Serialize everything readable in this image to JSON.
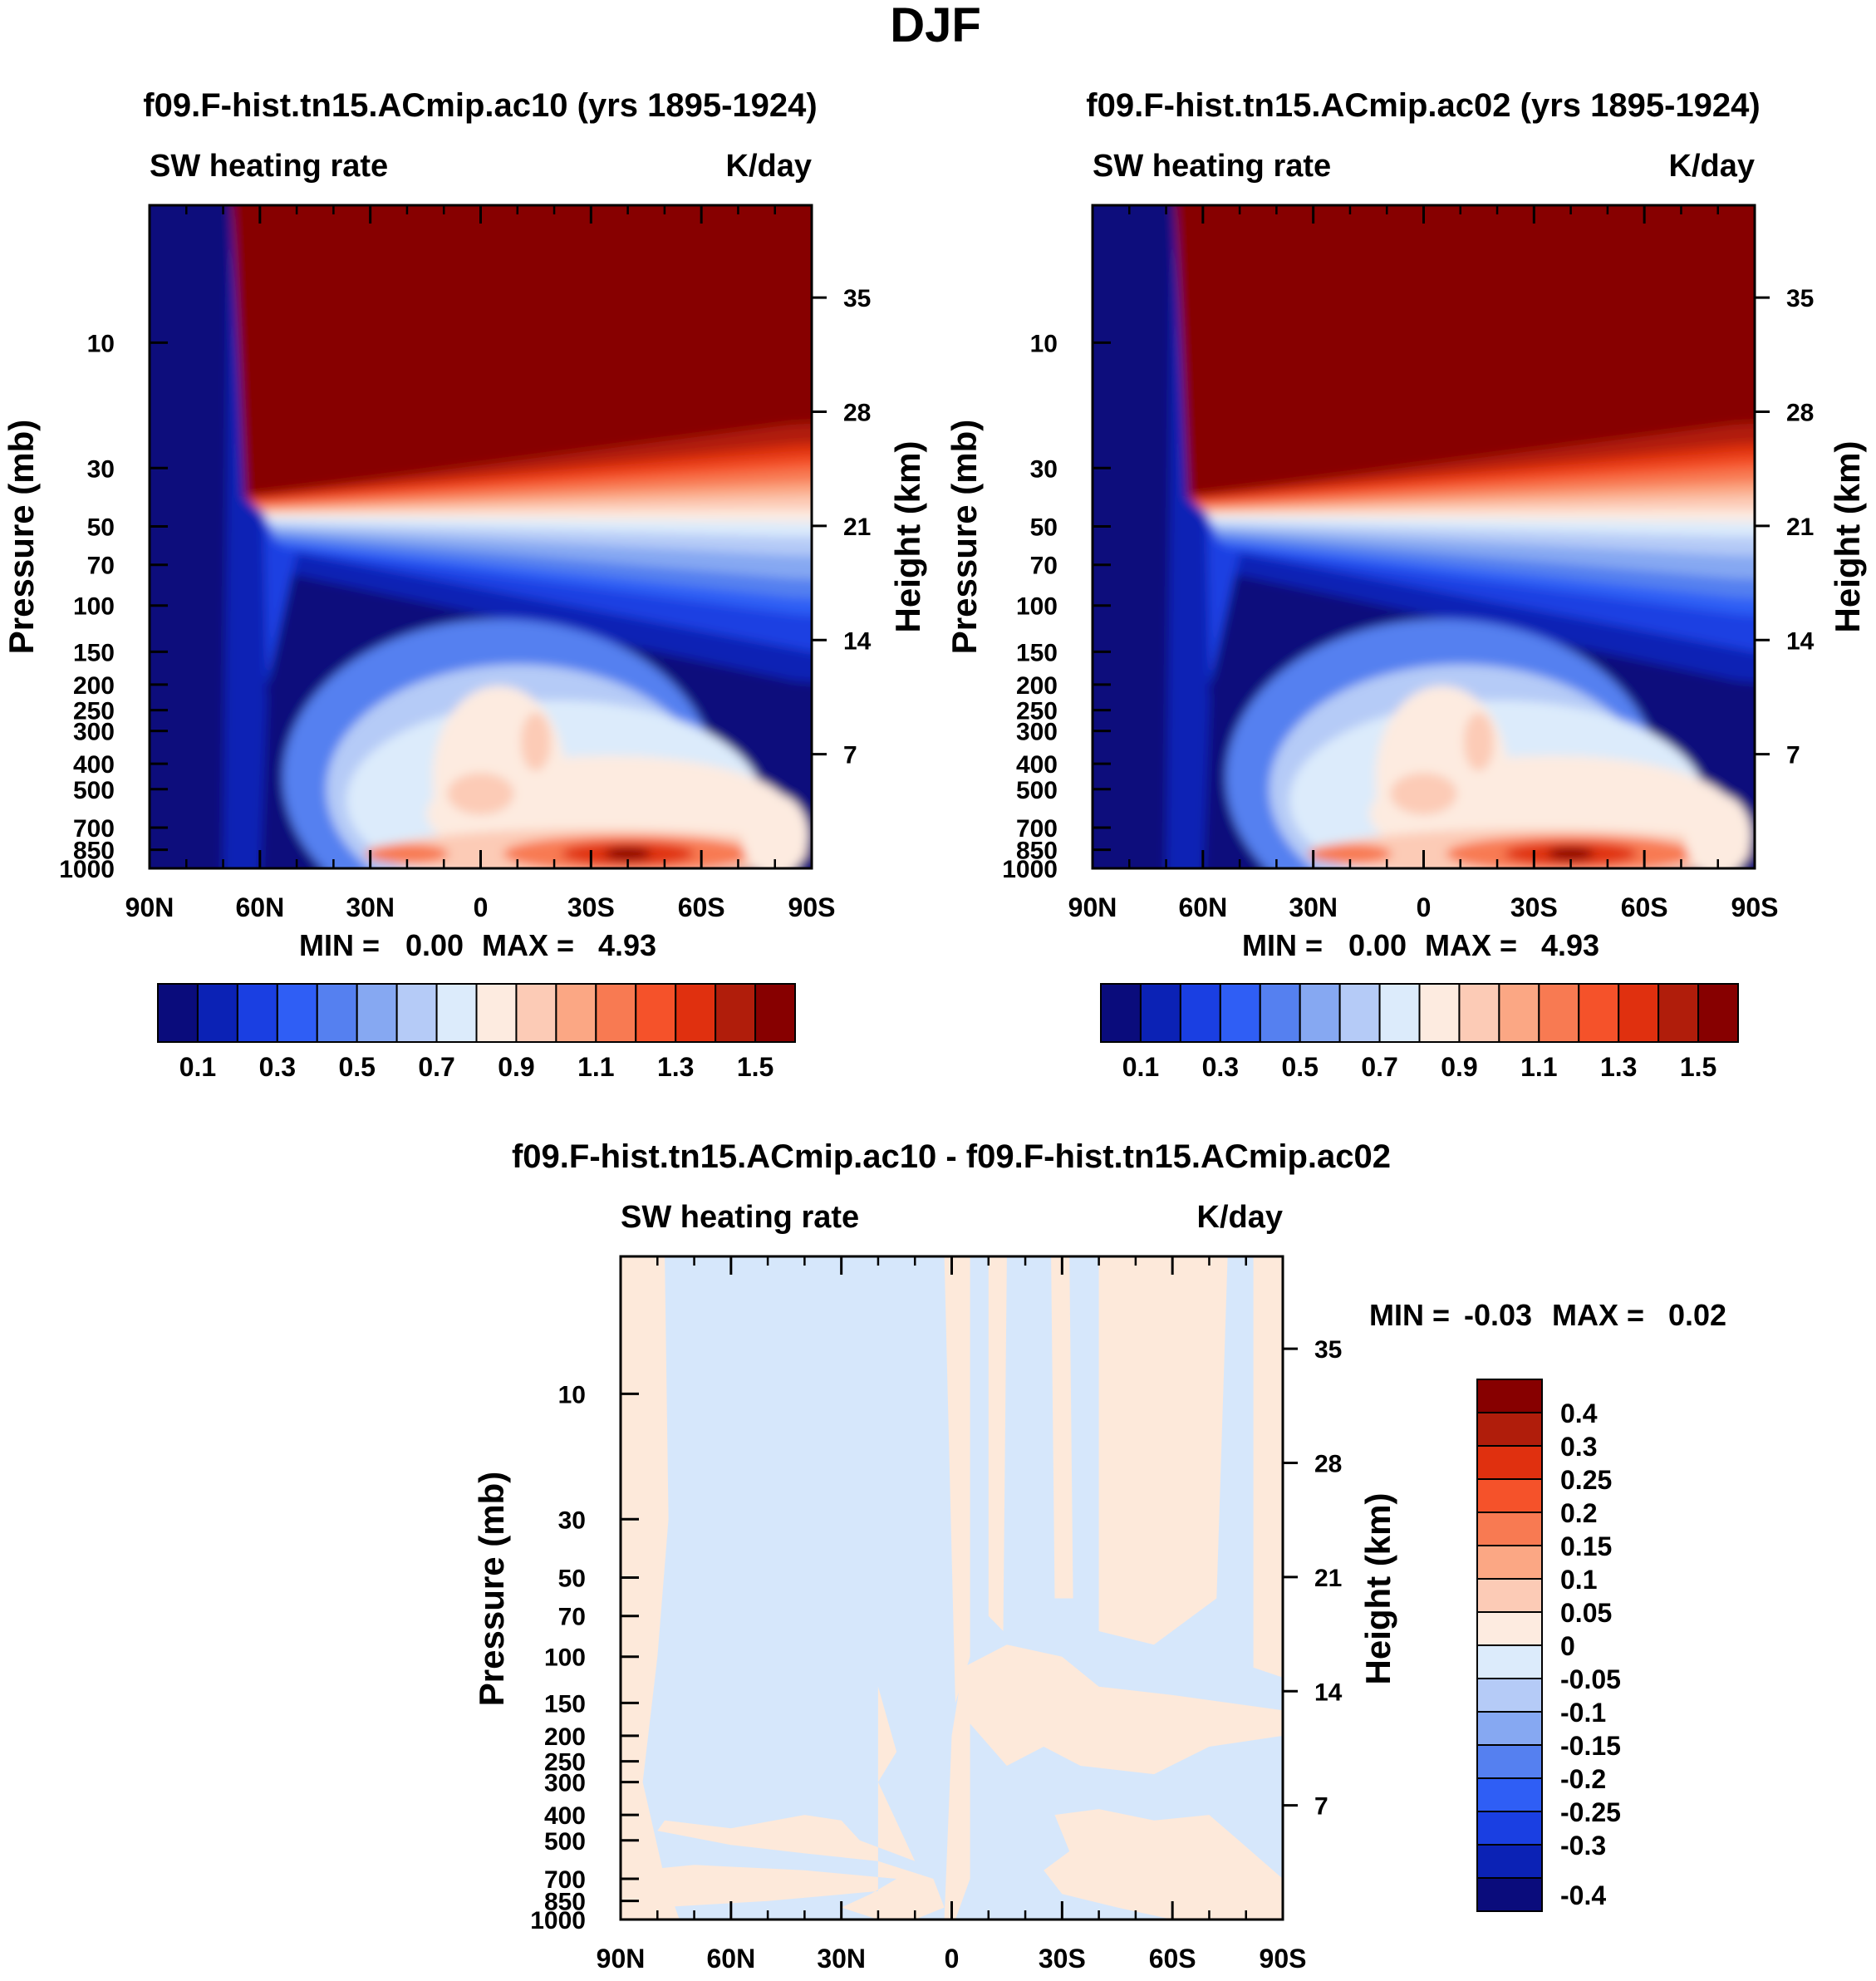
{
  "figure_title": "DJF",
  "colors": {
    "panel_scale": [
      "#0a0c7c",
      "#0b22b5",
      "#1a3fe2",
      "#2f5ef5",
      "#5580f0",
      "#86a8f2",
      "#b5cbf7",
      "#dcebfb",
      "#fdebe0",
      "#fccbb6",
      "#fba784",
      "#f87a52",
      "#f5522a",
      "#e0300f",
      "#b01d0b",
      "#870000"
    ],
    "diff_scale": [
      "#870000",
      "#b01d0b",
      "#e0300f",
      "#f5522a",
      "#f87a52",
      "#fba784",
      "#fccbb6",
      "#fdebe0",
      "#dcebfb",
      "#b5cbf7",
      "#86a8f2",
      "#5580f0",
      "#2f5ef5",
      "#1a3fe2",
      "#0b22b5",
      "#0a0c7c"
    ],
    "diff_pos": "#fde9da",
    "diff_neg": "#d6e7fb"
  },
  "chart_data": [
    {
      "type": "heatmap",
      "title": "f09.F-hist.tn15.ACmip.ac10 (yrs 1895-1924)",
      "left_label": "SW heating rate",
      "right_label": "K/day",
      "ylabel": "Pressure (mb)",
      "y2label": "Height (km)",
      "x_ticks": [
        "90N",
        "60N",
        "30N",
        "0",
        "30S",
        "60S",
        "90S"
      ],
      "y_ticks": [
        "10",
        "30",
        "50",
        "70",
        "100",
        "150",
        "200",
        "250",
        "300",
        "400",
        "500",
        "700",
        "850",
        "1000"
      ],
      "y2_ticks": [
        "35",
        "28",
        "21",
        "14",
        "7"
      ],
      "stats": {
        "min_label": "MIN =",
        "min": "0.00",
        "max_label": "MAX =",
        "max": "4.93"
      },
      "colorbar_labels": [
        "0.1",
        "0.3",
        "0.5",
        "0.7",
        "0.9",
        "1.1",
        "1.3",
        "1.5"
      ],
      "xlim": [
        90,
        -90
      ],
      "ylim": [
        1000,
        3
      ]
    },
    {
      "type": "heatmap",
      "title": "f09.F-hist.tn15.ACmip.ac02 (yrs 1895-1924)",
      "left_label": "SW heating rate",
      "right_label": "K/day",
      "ylabel": "Pressure (mb)",
      "y2label": "Height (km)",
      "x_ticks": [
        "90N",
        "60N",
        "30N",
        "0",
        "30S",
        "60S",
        "90S"
      ],
      "y_ticks": [
        "10",
        "30",
        "50",
        "70",
        "100",
        "150",
        "200",
        "250",
        "300",
        "400",
        "500",
        "700",
        "850",
        "1000"
      ],
      "y2_ticks": [
        "35",
        "28",
        "21",
        "14",
        "7"
      ],
      "stats": {
        "min_label": "MIN =",
        "min": "0.00",
        "max_label": "MAX =",
        "max": "4.93"
      },
      "colorbar_labels": [
        "0.1",
        "0.3",
        "0.5",
        "0.7",
        "0.9",
        "1.1",
        "1.3",
        "1.5"
      ],
      "xlim": [
        90,
        -90
      ],
      "ylim": [
        1000,
        3
      ]
    },
    {
      "type": "heatmap",
      "title": "f09.F-hist.tn15.ACmip.ac10 - f09.F-hist.tn15.ACmip.ac02",
      "left_label": "SW heating rate",
      "right_label": "K/day",
      "ylabel": "Pressure (mb)",
      "y2label": "Height (km)",
      "x_ticks": [
        "90N",
        "60N",
        "30N",
        "0",
        "30S",
        "60S",
        "90S"
      ],
      "y_ticks": [
        "10",
        "30",
        "50",
        "70",
        "100",
        "150",
        "200",
        "250",
        "300",
        "400",
        "500",
        "700",
        "850",
        "1000"
      ],
      "y2_ticks": [
        "35",
        "28",
        "21",
        "14",
        "7"
      ],
      "stats": {
        "min_label": "MIN =",
        "min": "-0.03",
        "max_label": "MAX =",
        "max": "0.02"
      },
      "colorbar_labels": [
        "0.4",
        "0.3",
        "0.25",
        "0.2",
        "0.15",
        "0.1",
        "0.05",
        "0",
        "-0.05",
        "-0.1",
        "-0.15",
        "-0.2",
        "-0.25",
        "-0.3",
        "-0.4"
      ],
      "xlim": [
        90,
        -90
      ],
      "ylim": [
        1000,
        3
      ]
    }
  ]
}
